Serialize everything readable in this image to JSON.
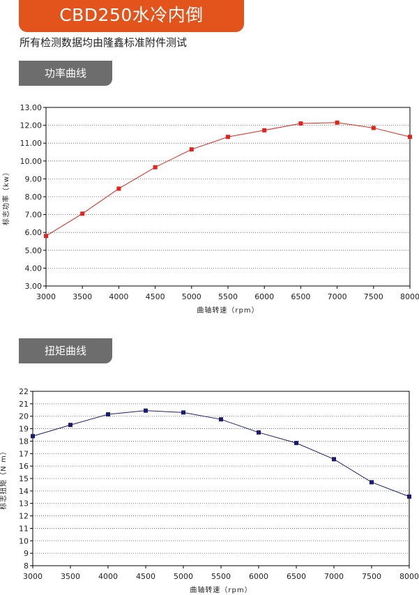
{
  "header": {
    "title": "CBD250水冷内倒",
    "subtitle": "所有检测数据均由隆鑫标准附件测试"
  },
  "sections": {
    "power_label": "功率曲线",
    "torque_label": "扭矩曲线"
  },
  "chart_data": [
    {
      "type": "line",
      "title": "",
      "xlabel": "曲轴转速（rpm）",
      "ylabel": "标志功率（kw）",
      "xlim": [
        3000,
        8000
      ],
      "ylim": [
        3,
        13
      ],
      "grid": true,
      "x_ticks": [
        "3000",
        "3500",
        "4000",
        "4500",
        "5000",
        "5500",
        "6000",
        "6500",
        "7000",
        "7500",
        "8000"
      ],
      "y_ticks": [
        "3.00",
        "4.00",
        "5.00",
        "6.00",
        "7.00",
        "8.00",
        "9.00",
        "10.00",
        "11.00",
        "12.00",
        "13.00"
      ],
      "color": "#e0241c",
      "x": [
        3000,
        3500,
        4000,
        4500,
        5000,
        5500,
        6000,
        6500,
        7000,
        7500,
        8000
      ],
      "values": [
        5.8,
        7.05,
        8.45,
        9.65,
        10.65,
        11.35,
        11.72,
        12.1,
        12.15,
        11.85,
        11.35
      ]
    },
    {
      "type": "line",
      "title": "",
      "xlabel": "曲轴转速（rpm）",
      "ylabel": "标志扭矩（N m）",
      "xlim": [
        3000,
        8000
      ],
      "ylim": [
        8,
        22
      ],
      "grid": true,
      "x_ticks": [
        "3000",
        "3500",
        "4000",
        "4500",
        "5000",
        "5500",
        "6000",
        "6500",
        "7000",
        "7500",
        "8000"
      ],
      "y_ticks": [
        "8",
        "9",
        "10",
        "11",
        "12",
        "13",
        "14",
        "15",
        "16",
        "17",
        "18",
        "19",
        "20",
        "21",
        "22"
      ],
      "color": "#1c1c6e",
      "x": [
        3000,
        3500,
        4000,
        4500,
        5000,
        5500,
        6000,
        6500,
        7000,
        7500,
        8000
      ],
      "values": [
        18.4,
        19.3,
        20.15,
        20.45,
        20.3,
        19.75,
        18.7,
        17.85,
        16.55,
        14.7,
        13.55
      ]
    }
  ]
}
